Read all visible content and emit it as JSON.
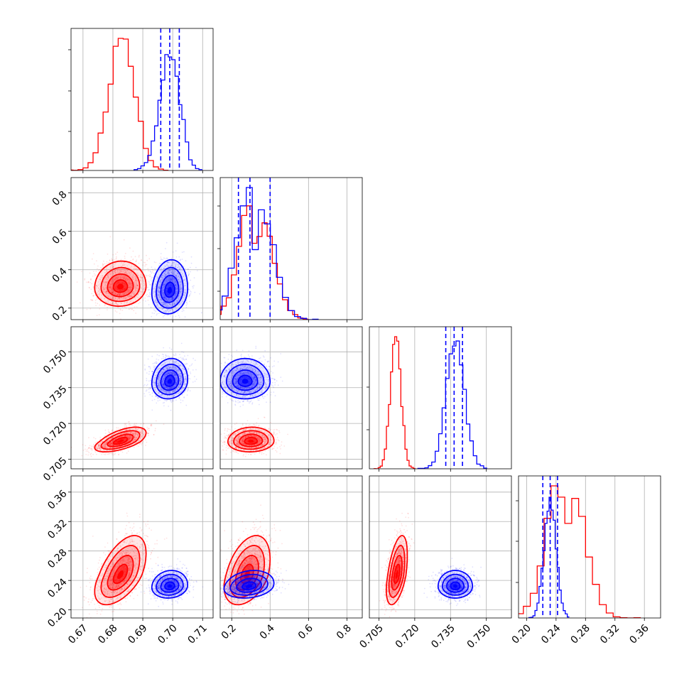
{
  "chart_data": {
    "type": "corner",
    "grid": true,
    "colors": {
      "red": "#ff0000",
      "blue": "#0000ff"
    },
    "series": [
      "red",
      "blue"
    ],
    "parameters": [
      {
        "range": [
          0.666,
          0.7135
        ],
        "ticks": [
          0.67,
          0.68,
          0.69,
          0.7,
          0.71
        ],
        "tick_labels": [
          "0.67",
          "0.68",
          "0.69",
          "0.70",
          "0.71"
        ]
      },
      {
        "range": [
          0.14,
          0.88
        ],
        "ticks": [
          0.2,
          0.4,
          0.6,
          0.8
        ],
        "tick_labels": [
          "0.2",
          "0.4",
          "0.6",
          "0.8"
        ]
      },
      {
        "range": [
          0.701,
          0.7605
        ],
        "ticks": [
          0.705,
          0.72,
          0.735,
          0.75
        ],
        "tick_labels": [
          "0.705",
          "0.720",
          "0.735",
          "0.750"
        ]
      },
      {
        "range": [
          0.189,
          0.382
        ],
        "ticks": [
          0.2,
          0.24,
          0.28,
          0.32,
          0.36
        ],
        "tick_labels": [
          "0.20",
          "0.24",
          "0.28",
          "0.32",
          "0.36"
        ]
      }
    ],
    "row_tick_labels": {
      "1": [
        "0.2",
        "0.4",
        "0.6",
        "0.8"
      ],
      "2": [
        "0.705",
        "0.720",
        "0.735",
        "0.750"
      ],
      "3": [
        "0.20",
        "0.24",
        "0.28",
        "0.32",
        "0.36"
      ]
    },
    "hist": {
      "red": [
        {
          "mean": 0.683,
          "sd": 0.0043
        },
        {
          "mean": 0.31,
          "sd": 0.07,
          "skew": true
        },
        {
          "mean": 0.712,
          "sd": 0.0022
        },
        {
          "mean": 0.248,
          "sd": 0.021,
          "skew": true
        }
      ],
      "blue": [
        {
          "mean": 0.699,
          "sd": 0.0033
        },
        {
          "mean": 0.3,
          "sd": 0.075,
          "skew": true
        },
        {
          "mean": 0.737,
          "sd": 0.0038
        },
        {
          "mean": 0.232,
          "sd": 0.008
        }
      ]
    },
    "quantiles_blue": [
      [
        0.696,
        0.699,
        0.7022
      ],
      [
        0.235,
        0.295,
        0.4
      ],
      [
        0.733,
        0.7365,
        0.74
      ],
      [
        0.222,
        0.232,
        0.242
      ]
    ],
    "pairs": {
      "red": {
        "1-0": {
          "cx": 0.6825,
          "cy": 0.31,
          "sx": 0.0043,
          "sy": 0.05,
          "rho": 0.05
        },
        "2-0": {
          "cx": 0.6825,
          "cy": 0.7125,
          "sx": 0.0043,
          "sy": 0.0022,
          "rho": 0.6
        },
        "2-1": {
          "cx": 0.3,
          "cy": 0.7125,
          "sx": 0.06,
          "sy": 0.0022,
          "rho": 0.05
        },
        "3-0": {
          "cx": 0.6825,
          "cy": 0.247,
          "sx": 0.0043,
          "sy": 0.02,
          "rho": 0.55
        },
        "3-1": {
          "cx": 0.28,
          "cy": 0.247,
          "sx": 0.06,
          "sy": 0.02,
          "rho": 0.4
        },
        "3-2": {
          "cx": 0.7125,
          "cy": 0.247,
          "sx": 0.0022,
          "sy": 0.02,
          "rho": 0.5
        }
      },
      "blue": {
        "1-0": {
          "cx": 0.699,
          "cy": 0.29,
          "sx": 0.003,
          "sy": 0.06,
          "rho": 0.1
        },
        "2-0": {
          "cx": 0.699,
          "cy": 0.7375,
          "sx": 0.003,
          "sy": 0.0036,
          "rho": 0.1
        },
        "2-1": {
          "cx": 0.27,
          "cy": 0.7375,
          "sx": 0.065,
          "sy": 0.0036,
          "rho": 0.0
        },
        "3-0": {
          "cx": 0.699,
          "cy": 0.232,
          "sx": 0.003,
          "sy": 0.008,
          "rho": 0.1
        },
        "3-1": {
          "cx": 0.29,
          "cy": 0.232,
          "sx": 0.065,
          "sy": 0.008,
          "rho": 0.2
        },
        "3-2": {
          "cx": 0.737,
          "cy": 0.232,
          "sx": 0.0036,
          "sy": 0.008,
          "rho": 0.0
        }
      }
    }
  }
}
